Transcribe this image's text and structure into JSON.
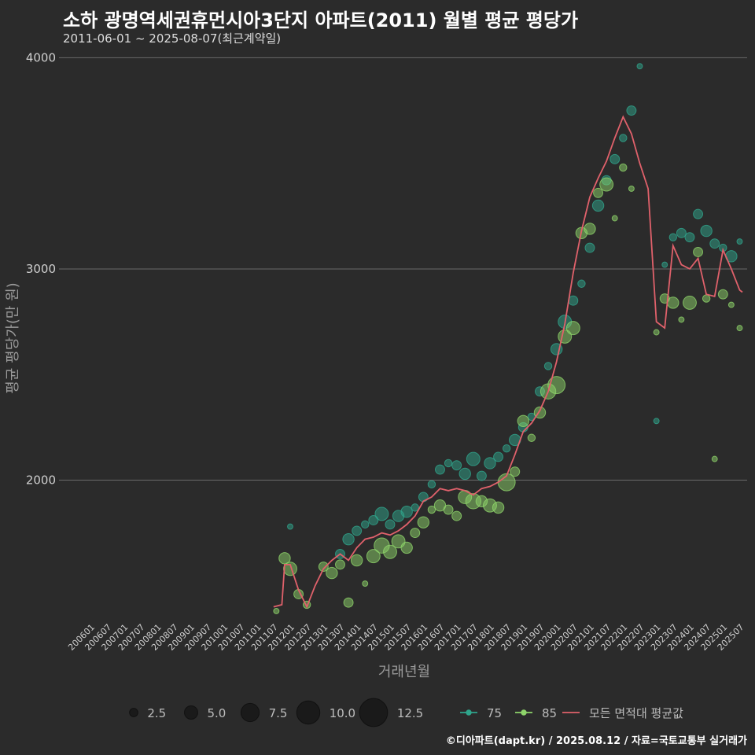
{
  "chart_data": {
    "type": "scatter",
    "title": "소하 광명역세권휴먼시아3단지 아파트(2011) 월별 평균 평당가",
    "subtitle": "2011-06-01 ~ 2025-08-07(최근계약일)",
    "xlabel": "거래년월",
    "ylabel": "평균 평당가(만 원)",
    "caption": "©디아파트(dapt.kr) / 2025.08.12 / 자료=국토교통부 실거래가",
    "ylim": [
      1350,
      4050
    ],
    "y_ticks": [
      2000,
      3000,
      4000
    ],
    "y_tick_labels": [
      "2000",
      "3000",
      "4000"
    ],
    "x_start": "200601",
    "x_end": "202508",
    "x_tick_labels": [
      "200601",
      "200607",
      "200701",
      "200707",
      "200801",
      "200807",
      "200901",
      "200907",
      "201001",
      "201007",
      "201101",
      "201107",
      "201201",
      "201207",
      "201301",
      "201307",
      "201401",
      "201407",
      "201501",
      "201507",
      "201601",
      "201607",
      "201701",
      "201707",
      "201801",
      "201807",
      "201901",
      "201907",
      "202001",
      "202007",
      "202101",
      "202107",
      "202201",
      "202207",
      "202301",
      "202307",
      "202401",
      "202407",
      "202501",
      "202507"
    ],
    "size_legend": {
      "values": [
        2.5,
        5.0,
        7.5,
        10.0,
        12.5
      ],
      "labels": [
        "2.5",
        "5.0",
        "7.5",
        "10.0",
        "12.5"
      ]
    },
    "series": [
      {
        "name": "75",
        "type": "scatter",
        "color": "#2fa58c",
        "points": [
          [
            201201,
            1780,
            1
          ],
          [
            201307,
            1650,
            3
          ],
          [
            201310,
            1720,
            4
          ],
          [
            201401,
            1760,
            3
          ],
          [
            201404,
            1790,
            2
          ],
          [
            201407,
            1810,
            3
          ],
          [
            201410,
            1840,
            5
          ],
          [
            201501,
            1790,
            3
          ],
          [
            201504,
            1830,
            4
          ],
          [
            201507,
            1850,
            4
          ],
          [
            201510,
            1870,
            2
          ],
          [
            201601,
            1920,
            3
          ],
          [
            201604,
            1980,
            2
          ],
          [
            201607,
            2050,
            3
          ],
          [
            201610,
            2080,
            2
          ],
          [
            201701,
            2070,
            3
          ],
          [
            201704,
            2030,
            4
          ],
          [
            201707,
            2100,
            5
          ],
          [
            201710,
            2020,
            3
          ],
          [
            201801,
            2080,
            4
          ],
          [
            201804,
            2110,
            3
          ],
          [
            201807,
            2150,
            2
          ],
          [
            201810,
            2190,
            4
          ],
          [
            201901,
            2250,
            3
          ],
          [
            201904,
            2300,
            2
          ],
          [
            201907,
            2420,
            3
          ],
          [
            201910,
            2540,
            2
          ],
          [
            202001,
            2620,
            4
          ],
          [
            202004,
            2750,
            5
          ],
          [
            202007,
            2850,
            3
          ],
          [
            202010,
            2930,
            2
          ],
          [
            202101,
            3100,
            3
          ],
          [
            202104,
            3300,
            4
          ],
          [
            202107,
            3420,
            3
          ],
          [
            202110,
            3520,
            3
          ],
          [
            202201,
            3620,
            2
          ],
          [
            202204,
            3750,
            3
          ],
          [
            202207,
            3960,
            1
          ],
          [
            202301,
            2280,
            1
          ],
          [
            202304,
            3020,
            1
          ],
          [
            202307,
            3150,
            2
          ],
          [
            202310,
            3170,
            3
          ],
          [
            202401,
            3150,
            3
          ],
          [
            202404,
            3260,
            3
          ],
          [
            202407,
            3180,
            4
          ],
          [
            202410,
            3120,
            3
          ],
          [
            202501,
            3100,
            2
          ],
          [
            202504,
            3060,
            4
          ],
          [
            202507,
            3130,
            1
          ]
        ]
      },
      {
        "name": "85",
        "type": "scatter",
        "color": "#8ed46a",
        "points": [
          [
            201108,
            1380,
            1
          ],
          [
            201111,
            1630,
            4
          ],
          [
            201201,
            1580,
            5
          ],
          [
            201204,
            1460,
            3
          ],
          [
            201207,
            1410,
            2
          ],
          [
            201301,
            1590,
            3
          ],
          [
            201304,
            1560,
            4
          ],
          [
            201307,
            1600,
            3
          ],
          [
            201310,
            1420,
            3
          ],
          [
            201401,
            1620,
            4
          ],
          [
            201404,
            1510,
            1
          ],
          [
            201407,
            1640,
            5
          ],
          [
            201410,
            1690,
            6
          ],
          [
            201501,
            1660,
            5
          ],
          [
            201504,
            1710,
            5
          ],
          [
            201507,
            1680,
            4
          ],
          [
            201510,
            1750,
            3
          ],
          [
            201601,
            1800,
            4
          ],
          [
            201604,
            1860,
            2
          ],
          [
            201607,
            1880,
            4
          ],
          [
            201610,
            1860,
            3
          ],
          [
            201701,
            1830,
            3
          ],
          [
            201704,
            1920,
            5
          ],
          [
            201707,
            1900,
            6
          ],
          [
            201710,
            1900,
            4
          ],
          [
            201801,
            1880,
            5
          ],
          [
            201804,
            1870,
            4
          ],
          [
            201807,
            1990,
            7
          ],
          [
            201810,
            2040,
            3
          ],
          [
            201901,
            2280,
            4
          ],
          [
            201904,
            2200,
            2
          ],
          [
            201907,
            2320,
            4
          ],
          [
            201910,
            2420,
            6
          ],
          [
            202001,
            2450,
            7
          ],
          [
            202004,
            2680,
            5
          ],
          [
            202007,
            2720,
            5
          ],
          [
            202010,
            3170,
            4
          ],
          [
            202101,
            3190,
            4
          ],
          [
            202104,
            3360,
            3
          ],
          [
            202107,
            3400,
            5
          ],
          [
            202110,
            3240,
            1
          ],
          [
            202201,
            3480,
            2
          ],
          [
            202204,
            3380,
            1
          ],
          [
            202301,
            2700,
            1
          ],
          [
            202304,
            2860,
            3
          ],
          [
            202307,
            2840,
            4
          ],
          [
            202310,
            2760,
            1
          ],
          [
            202401,
            2840,
            5
          ],
          [
            202404,
            3080,
            3
          ],
          [
            202407,
            2860,
            2
          ],
          [
            202410,
            2100,
            1
          ],
          [
            202501,
            2880,
            3
          ],
          [
            202504,
            2830,
            1
          ],
          [
            202507,
            2720,
            1
          ]
        ]
      },
      {
        "name": "모든 면적대 평균값",
        "type": "line",
        "color": "#e0616b",
        "points": [
          [
            201107,
            1400
          ],
          [
            201110,
            1410
          ],
          [
            201111,
            1600
          ],
          [
            201201,
            1600
          ],
          [
            201204,
            1480
          ],
          [
            201207,
            1400
          ],
          [
            201210,
            1500
          ],
          [
            201301,
            1580
          ],
          [
            201304,
            1620
          ],
          [
            201307,
            1650
          ],
          [
            201310,
            1620
          ],
          [
            201401,
            1680
          ],
          [
            201404,
            1720
          ],
          [
            201407,
            1730
          ],
          [
            201410,
            1750
          ],
          [
            201501,
            1740
          ],
          [
            201504,
            1760
          ],
          [
            201507,
            1790
          ],
          [
            201510,
            1830
          ],
          [
            201601,
            1900
          ],
          [
            201604,
            1920
          ],
          [
            201607,
            1960
          ],
          [
            201610,
            1950
          ],
          [
            201701,
            1960
          ],
          [
            201704,
            1950
          ],
          [
            201707,
            1930
          ],
          [
            201710,
            1960
          ],
          [
            201801,
            1970
          ],
          [
            201804,
            1990
          ],
          [
            201807,
            2020
          ],
          [
            201810,
            2120
          ],
          [
            201901,
            2230
          ],
          [
            201904,
            2270
          ],
          [
            201907,
            2330
          ],
          [
            201910,
            2420
          ],
          [
            202001,
            2560
          ],
          [
            202004,
            2740
          ],
          [
            202007,
            2980
          ],
          [
            202010,
            3180
          ],
          [
            202101,
            3340
          ],
          [
            202104,
            3430
          ],
          [
            202107,
            3510
          ],
          [
            202110,
            3620
          ],
          [
            202201,
            3720
          ],
          [
            202204,
            3640
          ],
          [
            202207,
            3500
          ],
          [
            202210,
            3380
          ],
          [
            202301,
            2750
          ],
          [
            202304,
            2720
          ],
          [
            202307,
            3110
          ],
          [
            202310,
            3020
          ],
          [
            202401,
            3000
          ],
          [
            202404,
            3050
          ],
          [
            202407,
            2880
          ],
          [
            202410,
            2870
          ],
          [
            202501,
            3090
          ],
          [
            202504,
            3000
          ],
          [
            202507,
            2900
          ],
          [
            202508,
            2890
          ]
        ]
      }
    ],
    "legend": {
      "position": "bottom",
      "items": [
        "75",
        "85",
        "모든 면적대 평균값"
      ]
    }
  }
}
